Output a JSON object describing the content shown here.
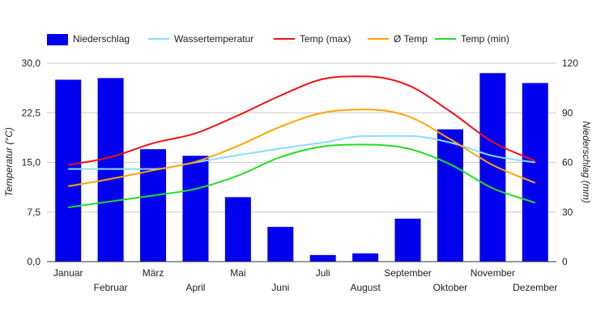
{
  "chart_data": {
    "type": "bar",
    "categories": [
      "Januar",
      "Februar",
      "März",
      "April",
      "Mai",
      "Juni",
      "Juli",
      "August",
      "September",
      "Oktober",
      "November",
      "Dezember"
    ],
    "series": [
      {
        "name": "Niederschlag",
        "type": "bar",
        "axis": "right",
        "color": "#0000ee",
        "values": [
          110,
          111,
          68,
          64,
          39,
          21,
          4,
          5,
          26,
          80,
          114,
          108
        ]
      },
      {
        "name": "Wassertemperatur",
        "type": "line",
        "axis": "left",
        "color": "#87ddff",
        "values": [
          14.0,
          14.0,
          14.0,
          15.0,
          16.1,
          17.1,
          18.0,
          19.0,
          19.0,
          18.0,
          16.0,
          15.0
        ]
      },
      {
        "name": "Temp (max)",
        "type": "line",
        "axis": "left",
        "color": "#ee1111",
        "values": [
          14.6,
          15.8,
          17.9,
          19.4,
          22.1,
          25.1,
          27.6,
          28.0,
          26.7,
          22.7,
          18.1,
          15.2
        ]
      },
      {
        "name": "Ø Temp",
        "type": "line",
        "axis": "left",
        "color": "#ffa500",
        "values": [
          11.4,
          12.5,
          13.8,
          15.1,
          17.5,
          20.4,
          22.5,
          23.0,
          22.0,
          18.5,
          14.6,
          11.9
        ]
      },
      {
        "name": "Temp (min)",
        "type": "line",
        "axis": "left",
        "color": "#22dd22",
        "values": [
          8.2,
          9.1,
          10.0,
          11.0,
          13.0,
          15.8,
          17.4,
          17.7,
          17.1,
          14.7,
          11.1,
          8.9
        ]
      }
    ],
    "y_left": {
      "label": "Temperatur (°C)",
      "ticks": [
        "0,0",
        "7,5",
        "15,0",
        "22,5",
        "30,0"
      ],
      "min": 0,
      "max": 30
    },
    "y_right": {
      "label": "Niederschlag (mm)",
      "ticks": [
        "0",
        "30",
        "60",
        "90",
        "120"
      ],
      "min": 0,
      "max": 120
    },
    "legend": {
      "position": "top",
      "entries": [
        "Niederschlag",
        "Wassertemperatur",
        "Temp (max)",
        "Ø Temp",
        "Temp (min)"
      ]
    },
    "grid": true
  }
}
